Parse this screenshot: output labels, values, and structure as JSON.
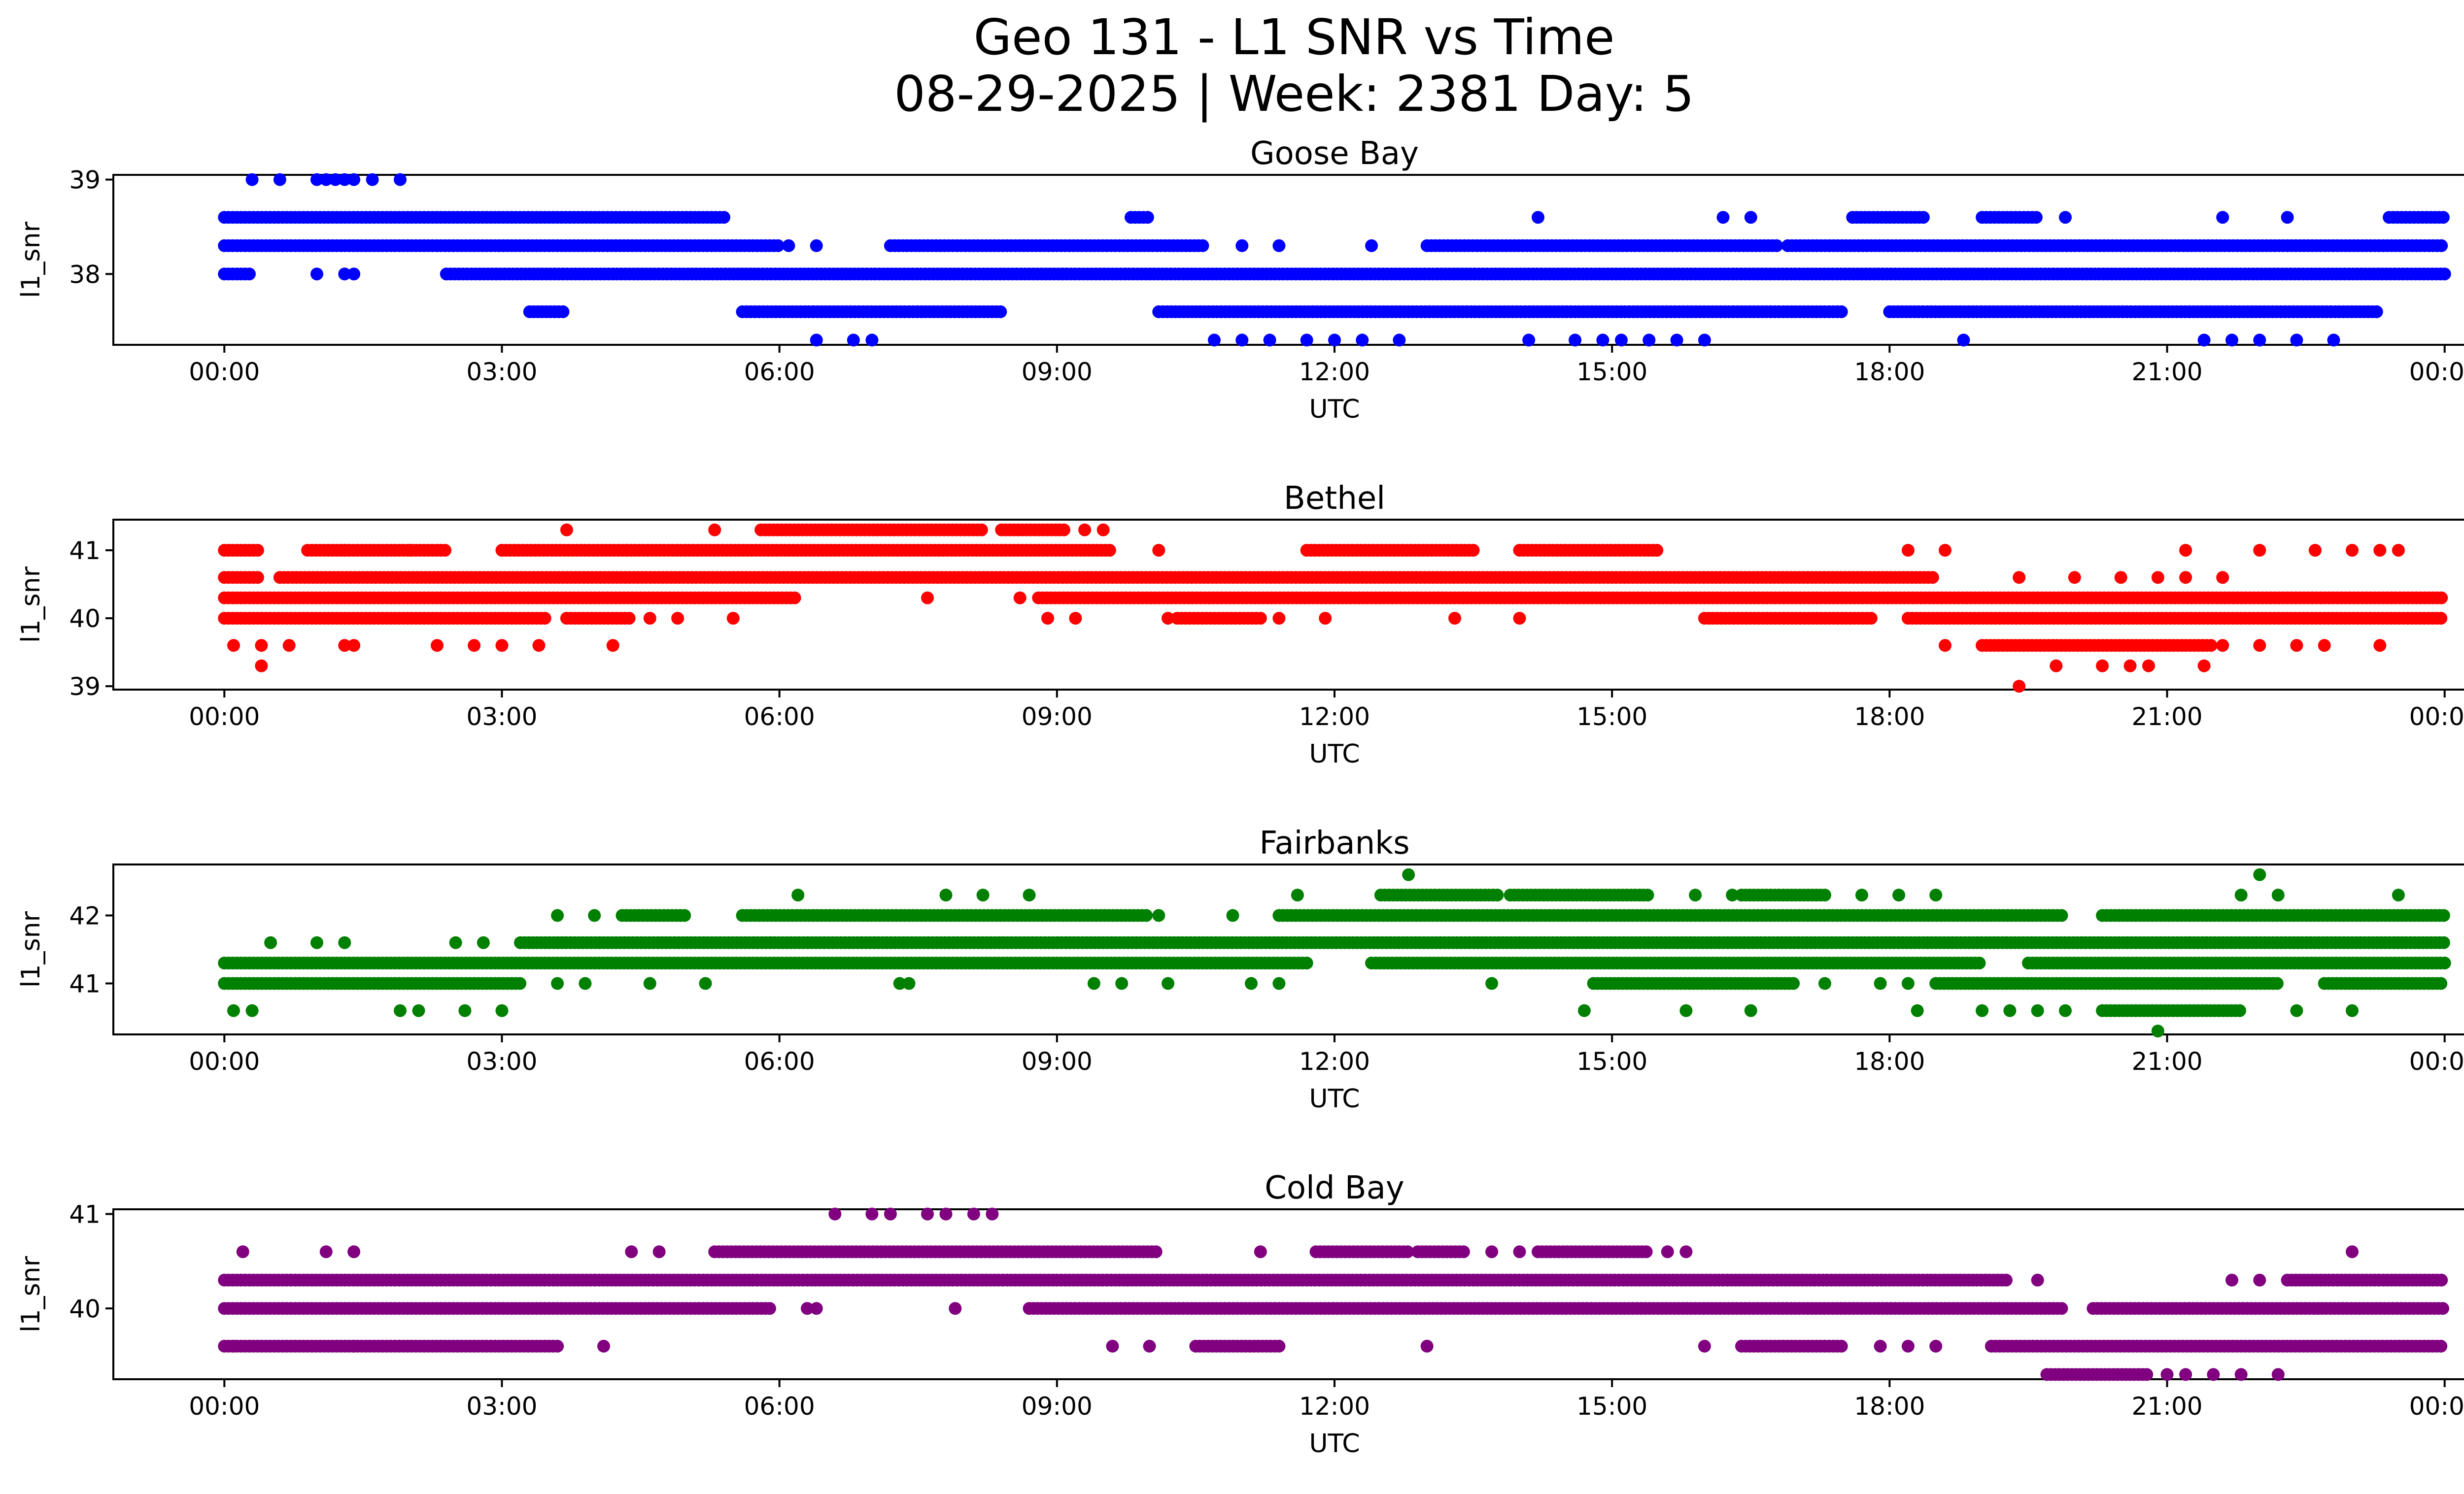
{
  "title": "Geo 131 - L1 SNR vs Time",
  "subtitle": "08-29-2025 | Week: 2381 Day: 5",
  "chart_data": [
    {
      "type": "scatter",
      "title": "Goose Bay",
      "color": "#0000ff",
      "xlabel": "UTC",
      "ylabel": "l1_snr",
      "xlim": [
        -1.2,
        25.2
      ],
      "ylim": [
        37.25,
        39.05
      ],
      "yticks": [
        38,
        39
      ],
      "xticks": [
        "00:00",
        "03:00",
        "06:00",
        "09:00",
        "12:00",
        "15:00",
        "18:00",
        "21:00",
        "00:00"
      ],
      "bands": [
        {
          "y": 38.6,
          "ranges": [
            [
              0,
              5.4
            ],
            [
              9.8,
              10.0
            ],
            [
              17.6,
              18.4
            ],
            [
              19.0,
              19.6
            ],
            [
              23.4,
              24
            ]
          ]
        },
        {
          "y": 38.3,
          "ranges": [
            [
              0,
              6.0
            ],
            [
              7.2,
              10.6
            ],
            [
              13.0,
              16.8
            ],
            [
              16.9,
              24
            ]
          ]
        },
        {
          "y": 38.0,
          "ranges": [
            [
              0,
              0.3
            ],
            [
              2.4,
              24
            ]
          ]
        },
        {
          "y": 37.6,
          "ranges": [
            [
              3.3,
              3.7
            ],
            [
              5.6,
              8.4
            ],
            [
              10.1,
              17.5
            ],
            [
              18.0,
              23.3
            ]
          ]
        }
      ],
      "points": [
        [
          0.3,
          39
        ],
        [
          0.6,
          39
        ],
        [
          1.0,
          39
        ],
        [
          1.1,
          39
        ],
        [
          1.2,
          39
        ],
        [
          1.3,
          39
        ],
        [
          1.4,
          39
        ],
        [
          1.6,
          39
        ],
        [
          1.9,
          39
        ],
        [
          14.2,
          38.6
        ],
        [
          16.2,
          38.6
        ],
        [
          16.5,
          38.6
        ],
        [
          19.9,
          38.6
        ],
        [
          21.6,
          38.6
        ],
        [
          22.3,
          38.6
        ],
        [
          6.1,
          38.3
        ],
        [
          6.4,
          38.3
        ],
        [
          11.0,
          38.3
        ],
        [
          11.4,
          38.3
        ],
        [
          12.4,
          38.3
        ],
        [
          1.0,
          38.0
        ],
        [
          1.3,
          38.0
        ],
        [
          1.4,
          38.0
        ],
        [
          6.4,
          37.3
        ],
        [
          6.8,
          37.3
        ],
        [
          7.0,
          37.3
        ],
        [
          10.7,
          37.3
        ],
        [
          11.0,
          37.3
        ],
        [
          11.3,
          37.3
        ],
        [
          11.7,
          37.3
        ],
        [
          12.0,
          37.3
        ],
        [
          12.3,
          37.3
        ],
        [
          12.7,
          37.3
        ],
        [
          14.1,
          37.3
        ],
        [
          14.6,
          37.3
        ],
        [
          14.9,
          37.3
        ],
        [
          15.1,
          37.3
        ],
        [
          15.4,
          37.3
        ],
        [
          15.7,
          37.3
        ],
        [
          16.0,
          37.3
        ],
        [
          18.8,
          37.3
        ],
        [
          21.4,
          37.3
        ],
        [
          21.7,
          37.3
        ],
        [
          22.0,
          37.3
        ],
        [
          22.4,
          37.3
        ],
        [
          22.8,
          37.3
        ]
      ]
    },
    {
      "type": "scatter",
      "title": "Bethel",
      "color": "#ff0000",
      "xlabel": "UTC",
      "ylabel": "l1_snr",
      "xlim": [
        -1.2,
        25.2
      ],
      "ylim": [
        38.95,
        41.45
      ],
      "yticks": [
        39,
        40,
        41
      ],
      "xticks": [
        "00:00",
        "03:00",
        "06:00",
        "09:00",
        "12:00",
        "15:00",
        "18:00",
        "21:00",
        "00:00"
      ],
      "bands": [
        {
          "y": 41.3,
          "ranges": [
            [
              5.8,
              8.2
            ],
            [
              8.4,
              9.1
            ]
          ]
        },
        {
          "y": 41.0,
          "ranges": [
            [
              0,
              0.4
            ],
            [
              0.9,
              2.4
            ],
            [
              3.0,
              9.6
            ],
            [
              11.7,
              13.5
            ],
            [
              14.0,
              15.5
            ]
          ]
        },
        {
          "y": 40.6,
          "ranges": [
            [
              0,
              0.4
            ],
            [
              0.6,
              18.5
            ]
          ]
        },
        {
          "y": 40.3,
          "ranges": [
            [
              0,
              6.2
            ],
            [
              8.8,
              24
            ]
          ]
        },
        {
          "y": 40.0,
          "ranges": [
            [
              0,
              3.5
            ],
            [
              3.7,
              4.4
            ],
            [
              10.3,
              11.2
            ],
            [
              16.0,
              17.8
            ],
            [
              18.2,
              24
            ]
          ]
        },
        {
          "y": 39.6,
          "ranges": [
            [
              19.0,
              21.5
            ]
          ]
        }
      ],
      "points": [
        [
          3.7,
          41.3
        ],
        [
          5.3,
          41.3
        ],
        [
          9.3,
          41.3
        ],
        [
          9.5,
          41.3
        ],
        [
          1.3,
          41.0
        ],
        [
          2.0,
          41.0
        ],
        [
          10.1,
          41.0
        ],
        [
          18.2,
          41.0
        ],
        [
          18.6,
          41.0
        ],
        [
          21.2,
          41.0
        ],
        [
          22.0,
          41.0
        ],
        [
          22.6,
          41.0
        ],
        [
          23.0,
          41.0
        ],
        [
          23.3,
          41.0
        ],
        [
          23.5,
          41.0
        ],
        [
          7.6,
          40.3
        ],
        [
          8.6,
          40.3
        ],
        [
          19.4,
          40.6
        ],
        [
          20.0,
          40.6
        ],
        [
          20.5,
          40.6
        ],
        [
          20.9,
          40.6
        ],
        [
          21.2,
          40.6
        ],
        [
          21.6,
          40.6
        ],
        [
          4.6,
          40.0
        ],
        [
          4.9,
          40.0
        ],
        [
          5.5,
          40.0
        ],
        [
          8.9,
          40.0
        ],
        [
          9.2,
          40.0
        ],
        [
          10.2,
          40.0
        ],
        [
          11.4,
          40.0
        ],
        [
          11.9,
          40.0
        ],
        [
          13.3,
          40.0
        ],
        [
          14.0,
          40.0
        ],
        [
          0.1,
          39.6
        ],
        [
          0.4,
          39.6
        ],
        [
          0.7,
          39.6
        ],
        [
          1.3,
          39.6
        ],
        [
          1.4,
          39.6
        ],
        [
          2.3,
          39.6
        ],
        [
          2.7,
          39.6
        ],
        [
          3.0,
          39.6
        ],
        [
          3.4,
          39.6
        ],
        [
          4.2,
          39.6
        ],
        [
          18.6,
          39.6
        ],
        [
          21.6,
          39.6
        ],
        [
          22.0,
          39.6
        ],
        [
          22.4,
          39.6
        ],
        [
          22.7,
          39.6
        ],
        [
          23.3,
          39.6
        ],
        [
          0.4,
          39.3
        ],
        [
          19.8,
          39.3
        ],
        [
          20.3,
          39.3
        ],
        [
          20.6,
          39.3
        ],
        [
          20.8,
          39.3
        ],
        [
          21.4,
          39.3
        ],
        [
          19.4,
          39.0
        ]
      ]
    },
    {
      "type": "scatter",
      "title": "Fairbanks",
      "color": "#008000",
      "xlabel": "UTC",
      "ylabel": "l1_snr",
      "xlim": [
        -1.2,
        25.2
      ],
      "ylim": [
        40.25,
        42.75
      ],
      "yticks": [
        41,
        42
      ],
      "xticks": [
        "00:00",
        "03:00",
        "06:00",
        "09:00",
        "12:00",
        "15:00",
        "18:00",
        "21:00",
        "00:00"
      ],
      "bands": [
        {
          "y": 42.3,
          "ranges": [
            [
              12.5,
              13.8
            ],
            [
              13.9,
              15.4
            ],
            [
              16.4,
              17.3
            ]
          ]
        },
        {
          "y": 42.0,
          "ranges": [
            [
              4.3,
              5.0
            ],
            [
              5.6,
              10.0
            ],
            [
              11.4,
              19.9
            ],
            [
              20.3,
              24
            ]
          ]
        },
        {
          "y": 41.6,
          "ranges": [
            [
              3.2,
              24
            ]
          ]
        },
        {
          "y": 41.3,
          "ranges": [
            [
              0,
              11.7
            ],
            [
              12.4,
              19.0
            ],
            [
              19.5,
              24
            ]
          ]
        },
        {
          "y": 41.0,
          "ranges": [
            [
              0,
              3.2
            ],
            [
              14.8,
              17.0
            ],
            [
              18.5,
              22.2
            ],
            [
              22.7,
              24
            ]
          ]
        },
        {
          "y": 40.6,
          "ranges": [
            [
              20.3,
              21.8
            ]
          ]
        }
      ],
      "points": [
        [
          12.8,
          42.6
        ],
        [
          22.0,
          42.6
        ],
        [
          6.2,
          42.3
        ],
        [
          7.8,
          42.3
        ],
        [
          8.2,
          42.3
        ],
        [
          8.7,
          42.3
        ],
        [
          11.6,
          42.3
        ],
        [
          15.3,
          42.3
        ],
        [
          15.9,
          42.3
        ],
        [
          16.3,
          42.3
        ],
        [
          17.7,
          42.3
        ],
        [
          18.1,
          42.3
        ],
        [
          18.5,
          42.3
        ],
        [
          21.8,
          42.3
        ],
        [
          22.2,
          42.3
        ],
        [
          23.5,
          42.3
        ],
        [
          3.6,
          42.0
        ],
        [
          4.0,
          42.0
        ],
        [
          10.1,
          42.0
        ],
        [
          10.9,
          42.0
        ],
        [
          0.5,
          41.6
        ],
        [
          1.0,
          41.6
        ],
        [
          1.3,
          41.6
        ],
        [
          2.5,
          41.6
        ],
        [
          2.8,
          41.6
        ],
        [
          3.6,
          41.0
        ],
        [
          3.9,
          41.0
        ],
        [
          4.6,
          41.0
        ],
        [
          5.2,
          41.0
        ],
        [
          7.3,
          41.0
        ],
        [
          7.4,
          41.0
        ],
        [
          9.4,
          41.0
        ],
        [
          9.7,
          41.0
        ],
        [
          10.2,
          41.0
        ],
        [
          11.1,
          41.0
        ],
        [
          11.4,
          41.0
        ],
        [
          13.7,
          41.0
        ],
        [
          17.3,
          41.0
        ],
        [
          17.9,
          41.0
        ],
        [
          18.2,
          41.0
        ],
        [
          0.1,
          40.6
        ],
        [
          0.3,
          40.6
        ],
        [
          1.9,
          40.6
        ],
        [
          2.1,
          40.6
        ],
        [
          2.6,
          40.6
        ],
        [
          3.0,
          40.6
        ],
        [
          14.7,
          40.6
        ],
        [
          15.8,
          40.6
        ],
        [
          16.5,
          40.6
        ],
        [
          18.3,
          40.6
        ],
        [
          19.0,
          40.6
        ],
        [
          19.3,
          40.6
        ],
        [
          19.6,
          40.6
        ],
        [
          19.9,
          40.6
        ],
        [
          22.4,
          40.6
        ],
        [
          23.0,
          40.6
        ],
        [
          20.9,
          40.3
        ]
      ]
    },
    {
      "type": "scatter",
      "title": "Cold Bay",
      "color": "#800080",
      "xlabel": "UTC",
      "ylabel": "l1_snr",
      "xlim": [
        -1.2,
        25.2
      ],
      "ylim": [
        39.25,
        41.05
      ],
      "yticks": [
        40,
        41
      ],
      "xticks": [
        "00:00",
        "03:00",
        "06:00",
        "09:00",
        "12:00",
        "15:00",
        "18:00",
        "21:00",
        "00:00"
      ],
      "bands": [
        {
          "y": 40.6,
          "ranges": [
            [
              5.3,
              10.1
            ],
            [
              11.8,
              12.8
            ],
            [
              12.9,
              13.4
            ],
            [
              14.2,
              15.4
            ]
          ]
        },
        {
          "y": 40.3,
          "ranges": [
            [
              0,
              19.3
            ],
            [
              22.3,
              24
            ]
          ]
        },
        {
          "y": 40.0,
          "ranges": [
            [
              0,
              5.9
            ],
            [
              8.7,
              19.9
            ],
            [
              20.2,
              24
            ]
          ]
        },
        {
          "y": 39.6,
          "ranges": [
            [
              0,
              3.6
            ],
            [
              10.5,
              11.4
            ],
            [
              16.4,
              17.5
            ],
            [
              19.1,
              24
            ]
          ]
        },
        {
          "y": 39.3,
          "ranges": [
            [
              19.7,
              20.8
            ]
          ]
        }
      ],
      "points": [
        [
          6.6,
          41
        ],
        [
          7.0,
          41
        ],
        [
          7.2,
          41
        ],
        [
          7.6,
          41
        ],
        [
          7.8,
          41
        ],
        [
          8.1,
          41
        ],
        [
          8.3,
          41
        ],
        [
          0.2,
          40.6
        ],
        [
          1.1,
          40.6
        ],
        [
          1.4,
          40.6
        ],
        [
          4.4,
          40.6
        ],
        [
          4.7,
          40.6
        ],
        [
          11.2,
          40.6
        ],
        [
          13.7,
          40.6
        ],
        [
          14.0,
          40.6
        ],
        [
          15.6,
          40.6
        ],
        [
          15.8,
          40.6
        ],
        [
          23.0,
          40.6
        ],
        [
          19.6,
          40.3
        ],
        [
          21.7,
          40.3
        ],
        [
          22.0,
          40.3
        ],
        [
          6.3,
          40.0
        ],
        [
          6.4,
          40.0
        ],
        [
          7.9,
          40.0
        ],
        [
          0.1,
          39.6
        ],
        [
          1.4,
          39.6
        ],
        [
          4.1,
          39.6
        ],
        [
          9.6,
          39.6
        ],
        [
          10.0,
          39.6
        ],
        [
          13.0,
          39.6
        ],
        [
          16.0,
          39.6
        ],
        [
          17.9,
          39.6
        ],
        [
          18.2,
          39.6
        ],
        [
          18.5,
          39.6
        ],
        [
          21.0,
          39.3
        ],
        [
          21.2,
          39.3
        ],
        [
          21.5,
          39.3
        ],
        [
          21.8,
          39.3
        ],
        [
          22.2,
          39.3
        ]
      ]
    }
  ]
}
